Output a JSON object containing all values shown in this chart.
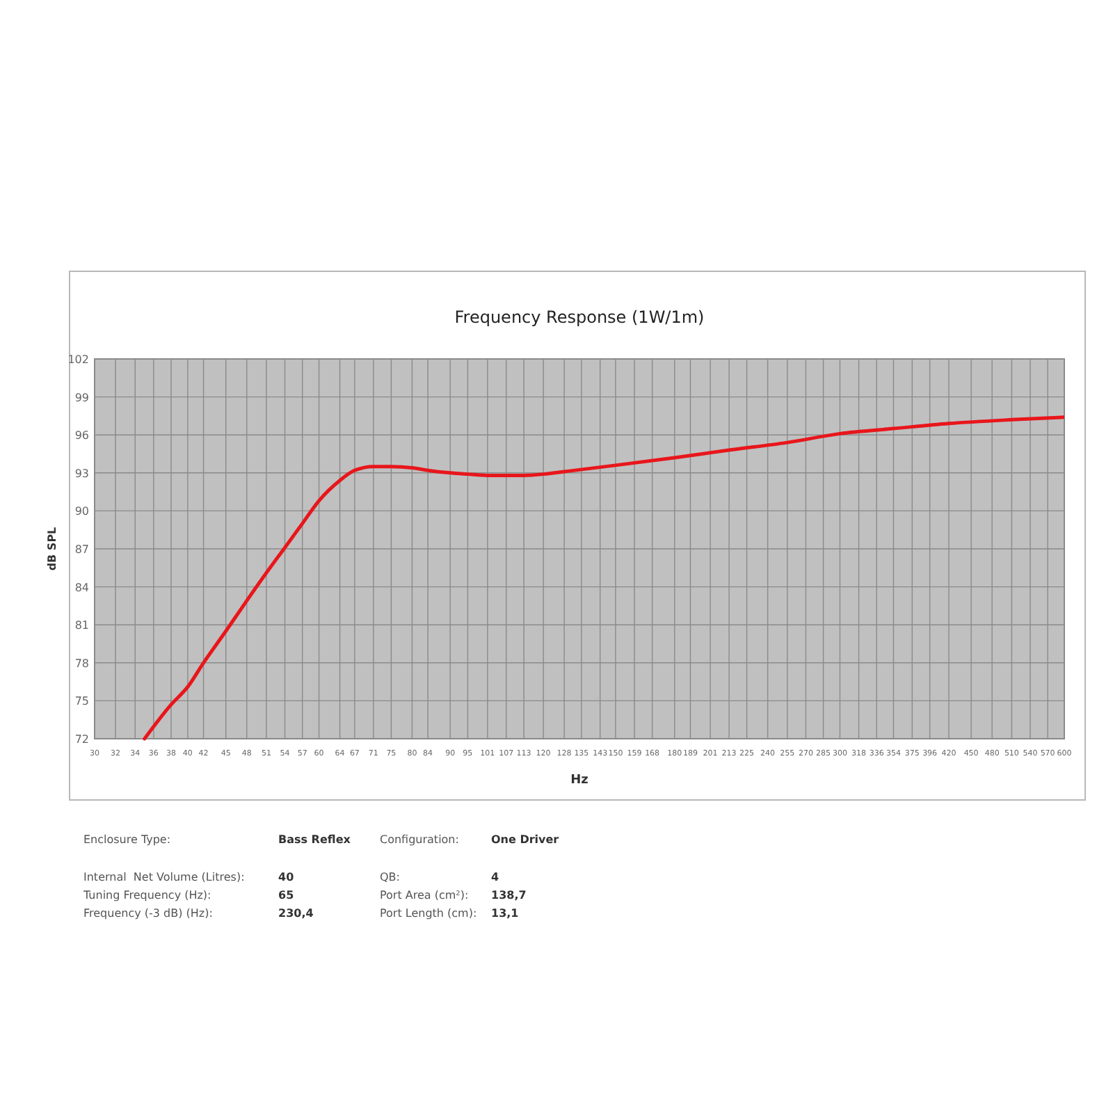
{
  "chart_data": {
    "type": "line",
    "title": "Frequency Response (1W/1m)",
    "xlabel": "Hz",
    "ylabel": "dB SPL",
    "log": "x",
    "grid": true,
    "xlim": [
      30,
      600
    ],
    "ylim": [
      72,
      102
    ],
    "xticks": [
      30,
      32,
      34,
      36,
      38,
      40,
      42,
      45,
      48,
      51,
      54,
      57,
      60,
      64,
      67,
      71,
      75,
      80,
      84,
      90,
      95,
      101,
      107,
      113,
      120,
      128,
      135,
      143,
      150,
      159,
      168,
      180,
      189,
      201,
      213,
      225,
      240,
      255,
      270,
      285,
      300,
      318,
      336,
      354,
      375,
      396,
      420,
      450,
      480,
      510,
      540,
      570,
      600
    ],
    "yticks": [
      72,
      75,
      78,
      81,
      84,
      87,
      90,
      93,
      96,
      99,
      102
    ],
    "series": [
      {
        "color": "#e8161b",
        "x": [
          35,
          38,
          40,
          42,
          45,
          48,
          51,
          54,
          57,
          60,
          64,
          67,
          71,
          75,
          80,
          84,
          90,
          95,
          101,
          107,
          113,
          120,
          128,
          150,
          180,
          213,
          255,
          300,
          354,
          420,
          510,
          600
        ],
        "values": [
          72.0,
          74.7,
          76.1,
          78.0,
          80.5,
          82.9,
          85.1,
          87.1,
          89.0,
          90.8,
          92.4,
          93.2,
          93.5,
          93.5,
          93.4,
          93.2,
          93.0,
          92.9,
          92.8,
          92.8,
          92.8,
          92.9,
          93.1,
          93.6,
          94.2,
          94.8,
          95.4,
          96.1,
          96.5,
          96.9,
          97.2,
          97.4
        ]
      }
    ],
    "annotations": [
      "Enclosure Type:",
      "Bass Reflex",
      "Configuration:",
      "One Driver",
      "Internal  Net Volume (Litres):",
      "40",
      "QB:",
      "4",
      "Tuning Frequency (Hz):",
      "65",
      "Port Area (cm²):",
      "138,7",
      "Frequency (-3 dB) (Hz):",
      "230,4",
      "Port Length (cm):",
      "13,1"
    ]
  }
}
